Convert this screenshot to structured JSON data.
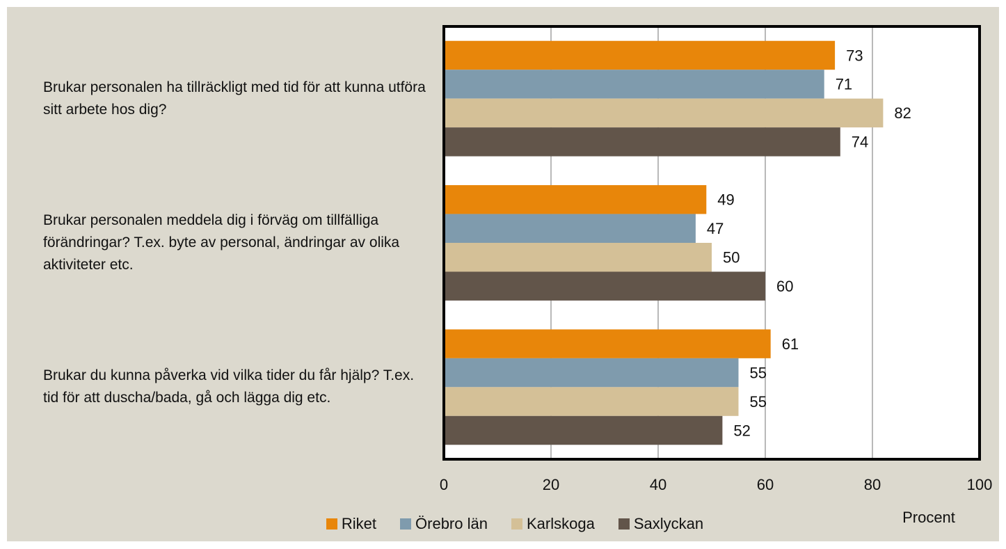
{
  "chart_data": {
    "type": "hbar",
    "categories": [
      "Brukar personalen ha tillräckligt med tid för att kunna utföra sitt arbete hos dig?",
      "Brukar personalen meddela dig i förväg om tillfälliga förändringar? T.ex. byte av personal, ändringar av olika aktiviteter etc.",
      "Brukar du kunna påverka vid vilka tider du får hjälp? T.ex. tid för att duscha/bada, gå och lägga dig etc."
    ],
    "series": [
      {
        "name": "Riket",
        "color": "#e8860a",
        "values": [
          73,
          49,
          61
        ]
      },
      {
        "name": "Örebro län",
        "color": "#7f9bad",
        "values": [
          71,
          47,
          55
        ]
      },
      {
        "name": "Karlskoga",
        "color": "#d4c097",
        "values": [
          82,
          50,
          55
        ]
      },
      {
        "name": "Saxlyckan",
        "color": "#62554a",
        "values": [
          74,
          60,
          52
        ]
      }
    ],
    "x_label": "Procent",
    "xlim": [
      0,
      100
    ],
    "xticks": [
      0,
      20,
      40,
      60,
      80,
      100
    ],
    "grid": true,
    "legend": "bottom"
  }
}
